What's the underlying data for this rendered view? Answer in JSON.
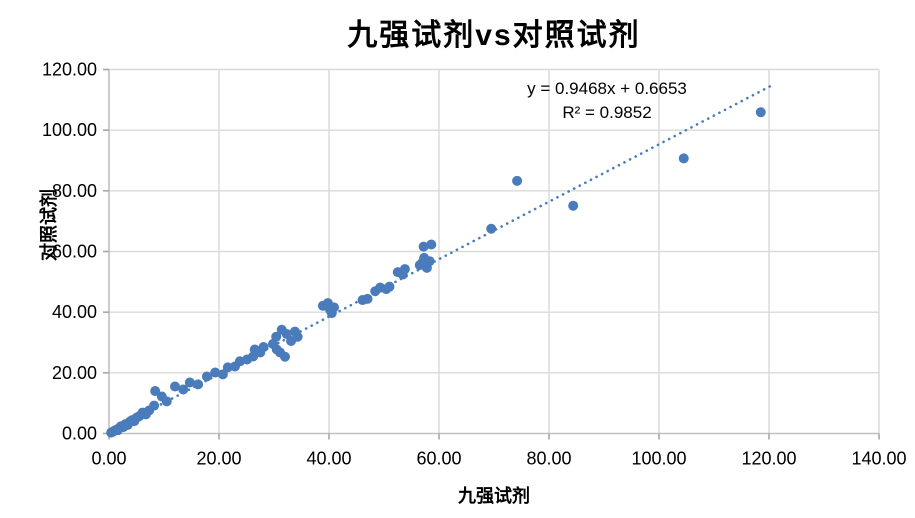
{
  "chart": {
    "title": "九强试剂vs对照试剂"
  },
  "chart_data": {
    "type": "scatter",
    "title": "九强试剂vs对照试剂",
    "xlabel": "九强试剂",
    "ylabel": "对照试剂",
    "xlim": [
      0,
      140
    ],
    "ylim": [
      0,
      120
    ],
    "xticks": [
      0,
      20,
      40,
      60,
      80,
      100,
      120,
      140
    ],
    "yticks": [
      0,
      20,
      40,
      60,
      80,
      100,
      120
    ],
    "xtick_labels": [
      "0.00",
      "20.00",
      "40.00",
      "60.00",
      "80.00",
      "100.00",
      "120.00",
      "140.00"
    ],
    "ytick_labels": [
      "0.00",
      "20.00",
      "40.00",
      "60.00",
      "80.00",
      "100.00",
      "120.00"
    ],
    "grid": true,
    "legend": "none",
    "colors": {
      "marker": "#4a7bba",
      "trendline": "#4a7bba",
      "gridline": "#d9d9d9",
      "axis": "#c0c0c0",
      "tick": "#a6a6a6",
      "text": "#000000"
    },
    "trendline": {
      "equation": "y = 0.9468x + 0.6653",
      "r_squared_label": "R² = 0.9852",
      "slope": 0.9468,
      "intercept": 0.6653,
      "x_start": 0.3,
      "x_end": 120.8,
      "style": "dotted"
    },
    "points": [
      [
        0.4,
        0.3
      ],
      [
        0.7,
        0.6
      ],
      [
        1.0,
        0.9
      ],
      [
        1.3,
        1.2
      ],
      [
        1.6,
        1.1
      ],
      [
        1.9,
        1.9
      ],
      [
        2.2,
        2.4
      ],
      [
        2.6,
        2.1
      ],
      [
        3.0,
        3.1
      ],
      [
        3.4,
        2.8
      ],
      [
        3.8,
        3.9
      ],
      [
        4.2,
        4.4
      ],
      [
        4.6,
        4.1
      ],
      [
        5.0,
        5.2
      ],
      [
        5.5,
        5.7
      ],
      [
        6.1,
        6.9
      ],
      [
        6.7,
        6.3
      ],
      [
        7.3,
        7.6
      ],
      [
        8.2,
        9.2
      ],
      [
        8.4,
        14.0
      ],
      [
        9.6,
        12.2
      ],
      [
        10.5,
        10.6
      ],
      [
        12.0,
        15.5
      ],
      [
        13.5,
        14.5
      ],
      [
        14.7,
        16.8
      ],
      [
        16.2,
        16.2
      ],
      [
        17.8,
        18.8
      ],
      [
        19.3,
        20.1
      ],
      [
        20.7,
        19.5
      ],
      [
        21.6,
        21.8
      ],
      [
        22.9,
        22.1
      ],
      [
        23.8,
        23.8
      ],
      [
        25.1,
        24.4
      ],
      [
        26.2,
        25.4
      ],
      [
        26.5,
        27.7
      ],
      [
        27.5,
        26.7
      ],
      [
        28.1,
        28.5
      ],
      [
        29.8,
        29.5
      ],
      [
        30.4,
        31.9
      ],
      [
        30.5,
        27.7
      ],
      [
        31.1,
        26.7
      ],
      [
        31.4,
        34.2
      ],
      [
        32.0,
        25.3
      ],
      [
        32.3,
        32.8
      ],
      [
        33.1,
        30.5
      ],
      [
        33.8,
        33.6
      ],
      [
        34.3,
        31.9
      ],
      [
        38.9,
        42.1
      ],
      [
        39.8,
        43.0
      ],
      [
        40.2,
        40.8
      ],
      [
        40.5,
        39.7
      ],
      [
        40.9,
        41.6
      ],
      [
        46.1,
        44.0
      ],
      [
        47.0,
        44.4
      ],
      [
        48.4,
        46.9
      ],
      [
        49.3,
        48.1
      ],
      [
        50.4,
        47.6
      ],
      [
        51.0,
        48.4
      ],
      [
        52.5,
        53.2
      ],
      [
        53.4,
        52.4
      ],
      [
        53.8,
        54.2
      ],
      [
        56.5,
        55.5
      ],
      [
        57.0,
        56.4
      ],
      [
        57.3,
        57.9
      ],
      [
        57.8,
        54.6
      ],
      [
        58.3,
        56.8
      ],
      [
        57.2,
        61.6
      ],
      [
        58.6,
        62.3
      ],
      [
        69.5,
        67.5
      ],
      [
        74.2,
        83.3
      ],
      [
        84.4,
        75.1
      ],
      [
        104.5,
        90.7
      ],
      [
        118.5,
        105.9
      ]
    ]
  }
}
